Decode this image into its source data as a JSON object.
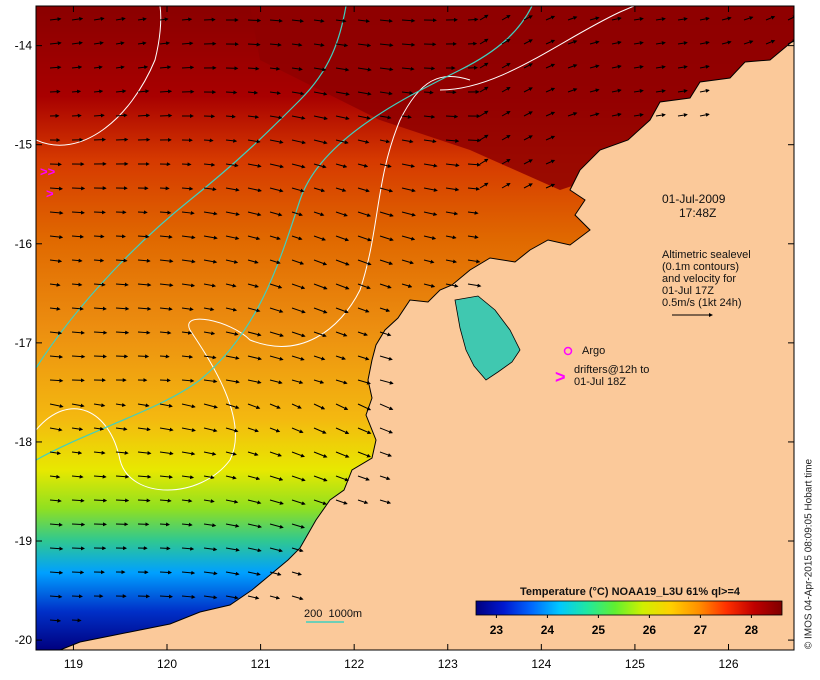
{
  "map": {
    "date_label": "01-Jul-2009",
    "time_label": "17:48Z",
    "lon_ticks": [
      "119",
      "120",
      "121",
      "122",
      "123",
      "124",
      "125",
      "126"
    ],
    "lat_ticks": [
      "-14",
      "-15",
      "-16",
      "-17",
      "-18",
      "-19",
      "-20"
    ],
    "lon_range": [
      118.6,
      126.7
    ],
    "lat_range": [
      -20.1,
      -13.6
    ]
  },
  "legend": {
    "sealevel_note": "Altimetric sealevel\n(0.1m contours)\nand velocity for\n01-Jul 17Z\n0.5m/s (1kt 24h)",
    "argo_label": "Argo",
    "drifters_label": "drifters@12h to\n01-Jul 18Z",
    "depth_label": "200  1000m"
  },
  "colorbar": {
    "title": "Temperature (°C) NOAA19_L3U 61% ql>=4",
    "ticks": [
      "23",
      "24",
      "25",
      "26",
      "27",
      "28"
    ],
    "range": [
      22.6,
      28.6
    ],
    "colors": [
      "#00007f",
      "#0018d0",
      "#0068ff",
      "#00c8ff",
      "#20e8a0",
      "#60f030",
      "#d0f000",
      "#ffd000",
      "#ff9000",
      "#ff3000",
      "#c00000",
      "#7f0000"
    ]
  },
  "credit": "© IMOS 04-Apr-2015 08:09:05 Hobart time"
}
